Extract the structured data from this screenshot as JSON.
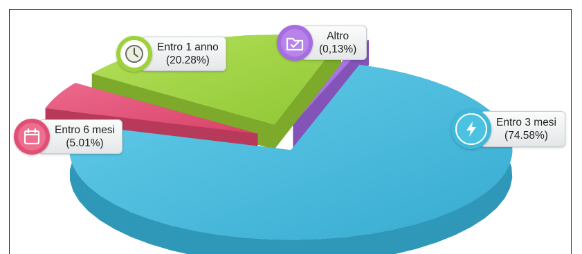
{
  "chart_data": {
    "type": "pie",
    "title": "",
    "slices": [
      {
        "label": "Entro 3 mesi",
        "value": 74.58,
        "value_text": "(74.58%)",
        "color": "#3fb8da",
        "side_color": "#2f97b8",
        "icon": "lightning-icon"
      },
      {
        "label": "Entro 6 mesi",
        "value": 5.01,
        "value_text": "(5.01%)",
        "color": "#e24f74",
        "side_color": "#b83a5a",
        "icon": "calendar-icon"
      },
      {
        "label": "Entro 1 anno",
        "value": 20.28,
        "value_text": "(20.28%)",
        "color": "#9dd23a",
        "side_color": "#7daa2b",
        "icon": "clock-icon"
      },
      {
        "label": "Altro",
        "value": 0.13,
        "value_text": "(0,13%)",
        "color": "#a56de0",
        "side_color": "#8453b8",
        "icon": "folder-check-icon"
      }
    ],
    "legend": "callouts"
  }
}
